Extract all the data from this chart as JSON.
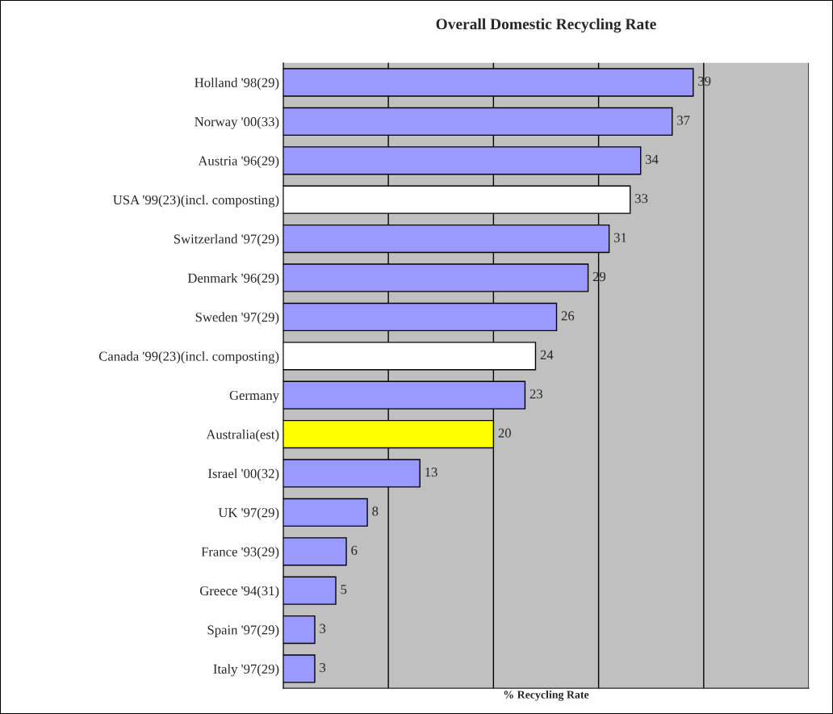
{
  "chart_data": {
    "type": "bar",
    "orientation": "horizontal",
    "title": "Overall Domestic Recycling Rate",
    "xlabel": "% Recycling Rate",
    "categories": [
      "Holland '98(29)",
      "Norway '00(33)",
      "Austria '96(29)",
      "USA '99(23)(incl. composting)",
      "Switzerland '97(29)",
      "Denmark '96(29)",
      "Sweden '97(29)",
      "Canada '99(23)(incl. composting)",
      "Germany",
      "Australia(est)",
      "Israel '00(32)",
      "UK '97(29)",
      "France '93(29)",
      "Greece '94(31)",
      "Spain '97(29)",
      "Italy '97(29)"
    ],
    "values": [
      39,
      37,
      34,
      33,
      31,
      29,
      26,
      24,
      23,
      20,
      13,
      8,
      6,
      5,
      3,
      3
    ],
    "colors": [
      "#9999ff",
      "#9999ff",
      "#9999ff",
      "#ffffff",
      "#9999ff",
      "#9999ff",
      "#9999ff",
      "#ffffff",
      "#9999ff",
      "#ffff00",
      "#9999ff",
      "#9999ff",
      "#9999ff",
      "#9999ff",
      "#9999ff",
      "#9999ff"
    ],
    "xlim": [
      0,
      50
    ],
    "xticks": [
      {
        "value": 0,
        "label": null
      },
      {
        "value": 10,
        "label": null
      },
      {
        "value": 20,
        "label": null
      },
      {
        "value": 30,
        "label": null
      },
      {
        "value": 40,
        "label": null
      },
      {
        "value": 50,
        "label": null
      }
    ],
    "tick_labels": "y",
    "grid": "x",
    "data_labels": true,
    "legend": false
  }
}
